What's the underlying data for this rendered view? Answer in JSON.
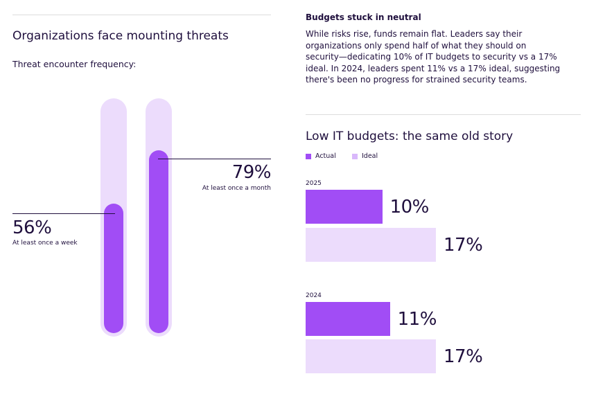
{
  "left": {
    "title": "Organizations face mounting threats",
    "subtitle": "Threat encounter frequency:"
  },
  "right": {
    "heading": "Budgets stuck in neutral",
    "paragraph": "While risks rise, funds remain flat. Leaders say their organizations only spend half of what they should on security—dedicating 10% of IT budgets to security vs a 17% ideal. In 2024, leaders spent 11% vs a 17% ideal, suggesting there's been no progress for strained security teams.",
    "chart_title": "Low IT budgets: the same old story"
  },
  "colors": {
    "actual": "#a14df5",
    "ideal": "#ecdcfc",
    "text": "#1f0f3d"
  },
  "chart_data": [
    {
      "type": "bar",
      "title": "Threat encounter frequency:",
      "categories": [
        "At least once a week",
        "At least once a month"
      ],
      "values": [
        56,
        79
      ],
      "value_labels": [
        "56%",
        "79%"
      ],
      "ylim": [
        0,
        100
      ],
      "xlabel": "",
      "ylabel": ""
    },
    {
      "type": "bar",
      "orientation": "horizontal",
      "title": "Low IT budgets: the same old story",
      "legend": [
        "Actual",
        "Ideal"
      ],
      "categories": [
        "2025",
        "2024"
      ],
      "series": [
        {
          "name": "Actual",
          "values": [
            10,
            11
          ],
          "labels": [
            "10%",
            "11%"
          ]
        },
        {
          "name": "Ideal",
          "values": [
            17,
            17
          ],
          "labels": [
            "17%",
            "17%"
          ]
        }
      ],
      "xlim": [
        0,
        17
      ],
      "xlabel": "",
      "ylabel": ""
    }
  ]
}
